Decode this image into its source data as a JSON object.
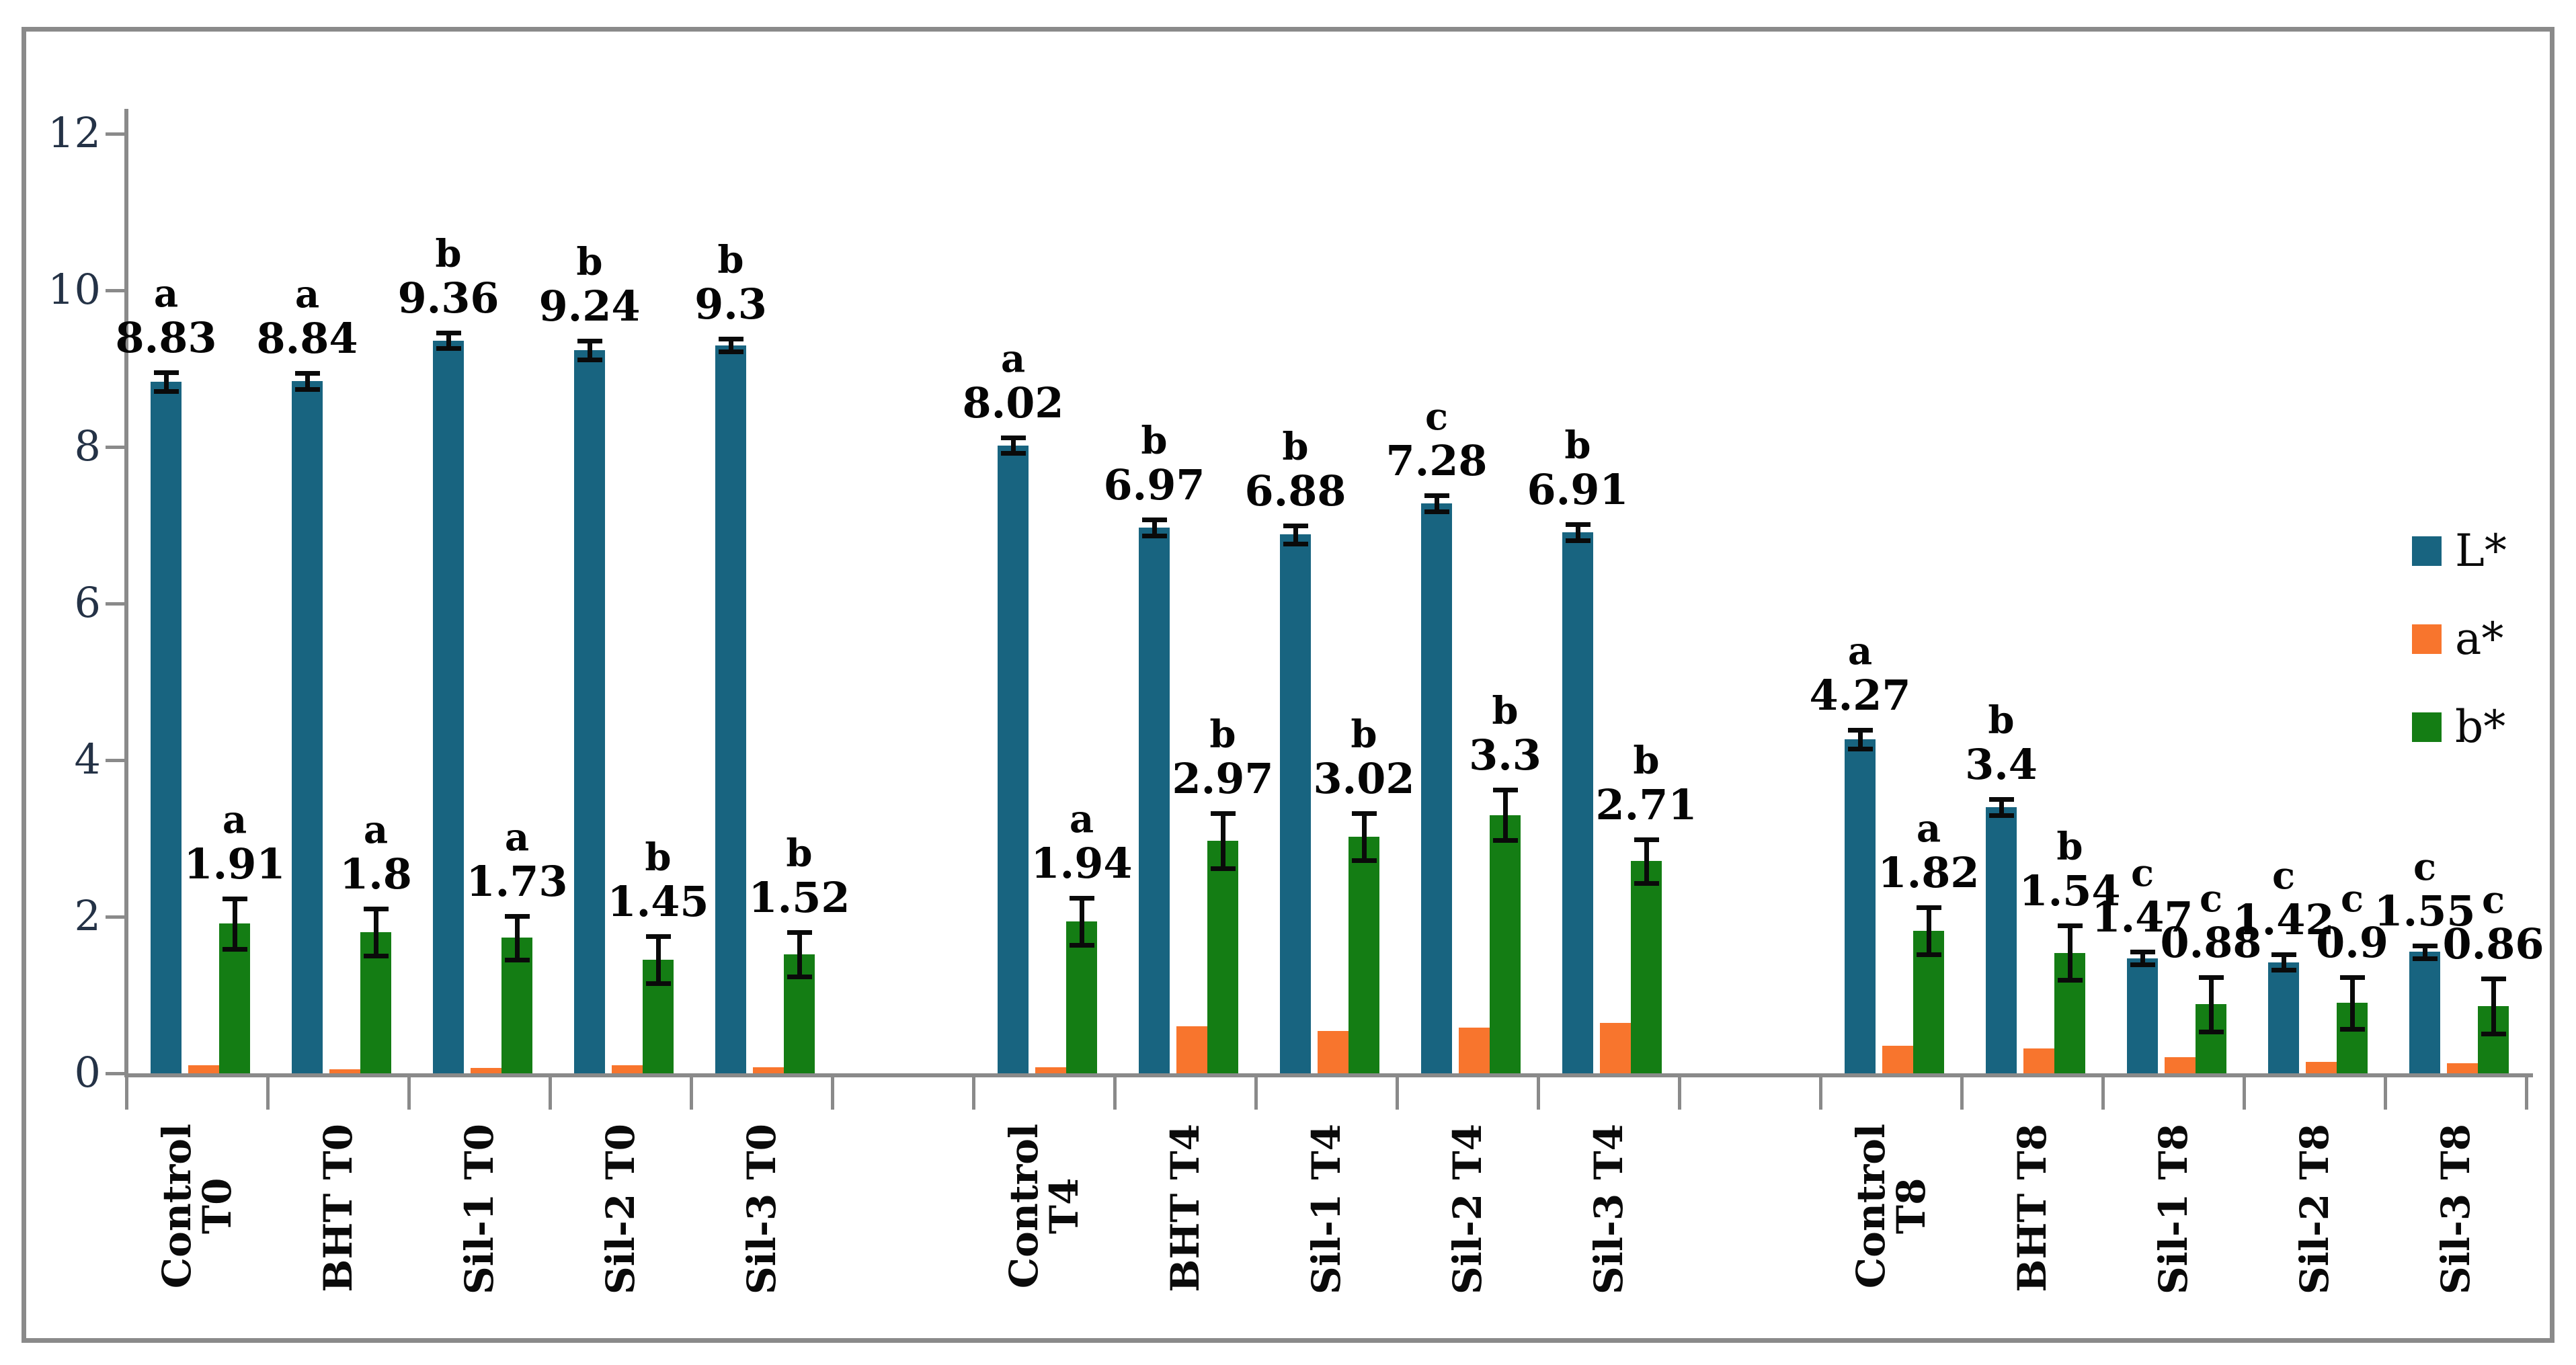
{
  "figure": {
    "background": "#FFFFFF",
    "border_color": "#8A8A8A",
    "axis_color": "#8A8A8A",
    "tick_label_color": "#243246",
    "label_text_color": "#050505"
  },
  "chart_data": {
    "type": "bar",
    "title": "",
    "xlabel": "",
    "ylabel": "",
    "ylim": [
      0,
      12
    ],
    "yticks": [
      0,
      2,
      4,
      6,
      8,
      10,
      12
    ],
    "grid": false,
    "legend": {
      "position": "right-inside",
      "items": [
        {
          "name": "L*",
          "color": "#186480"
        },
        {
          "name": "a*",
          "color": "#F8752D"
        },
        {
          "name": "b*",
          "color": "#147D14"
        }
      ]
    },
    "series_order": [
      "L*",
      "a*",
      "b*"
    ],
    "groups": [
      {
        "name": "T0",
        "clusters": [
          {
            "label_lines": [
              "Control",
              "T0"
            ],
            "bars": [
              {
                "series": "L*",
                "value": 8.83,
                "display": "8.83",
                "letter": "a",
                "err": 0.12
              },
              {
                "series": "a*",
                "value": 0.1,
                "display": "",
                "letter": "",
                "err": 0
              },
              {
                "series": "b*",
                "value": 1.91,
                "display": "1.91",
                "letter": "a",
                "err": 0.32
              }
            ]
          },
          {
            "label_lines": [
              "BHT T0"
            ],
            "bars": [
              {
                "series": "L*",
                "value": 8.84,
                "display": "8.84",
                "letter": "a",
                "err": 0.1
              },
              {
                "series": "a*",
                "value": 0.05,
                "display": "",
                "letter": "",
                "err": 0
              },
              {
                "series": "b*",
                "value": 1.8,
                "display": "1.8",
                "letter": "a",
                "err": 0.3
              }
            ]
          },
          {
            "label_lines": [
              "Sil-1 T0"
            ],
            "bars": [
              {
                "series": "L*",
                "value": 9.36,
                "display": "9.36",
                "letter": "b",
                "err": 0.1
              },
              {
                "series": "a*",
                "value": 0.07,
                "display": "",
                "letter": "",
                "err": 0
              },
              {
                "series": "b*",
                "value": 1.73,
                "display": "1.73",
                "letter": "a",
                "err": 0.28
              }
            ]
          },
          {
            "label_lines": [
              "Sil-2 T0"
            ],
            "bars": [
              {
                "series": "L*",
                "value": 9.24,
                "display": "9.24",
                "letter": "b",
                "err": 0.12
              },
              {
                "series": "a*",
                "value": 0.1,
                "display": "",
                "letter": "",
                "err": 0
              },
              {
                "series": "b*",
                "value": 1.45,
                "display": "1.45",
                "letter": "b",
                "err": 0.3
              }
            ]
          },
          {
            "label_lines": [
              "Sil-3 T0"
            ],
            "bars": [
              {
                "series": "L*",
                "value": 9.3,
                "display": "9.3",
                "letter": "b",
                "err": 0.08
              },
              {
                "series": "a*",
                "value": 0.08,
                "display": "",
                "letter": "",
                "err": 0
              },
              {
                "series": "b*",
                "value": 1.52,
                "display": "1.52",
                "letter": "b",
                "err": 0.28
              }
            ]
          }
        ]
      },
      {
        "name": "T4",
        "clusters": [
          {
            "label_lines": [
              "Control",
              "T4"
            ],
            "bars": [
              {
                "series": "L*",
                "value": 8.02,
                "display": "8.02",
                "letter": "a",
                "err": 0.1
              },
              {
                "series": "a*",
                "value": 0.08,
                "display": "",
                "letter": "",
                "err": 0
              },
              {
                "series": "b*",
                "value": 1.94,
                "display": "1.94",
                "letter": "a",
                "err": 0.3
              }
            ]
          },
          {
            "label_lines": [
              "BHT T4"
            ],
            "bars": [
              {
                "series": "L*",
                "value": 6.97,
                "display": "6.97",
                "letter": "b",
                "err": 0.1
              },
              {
                "series": "a*",
                "value": 0.6,
                "display": "",
                "letter": "",
                "err": 0
              },
              {
                "series": "b*",
                "value": 2.97,
                "display": "2.97",
                "letter": "b",
                "err": 0.35
              }
            ]
          },
          {
            "label_lines": [
              "Sil-1 T4"
            ],
            "bars": [
              {
                "series": "L*",
                "value": 6.88,
                "display": "6.88",
                "letter": "b",
                "err": 0.12
              },
              {
                "series": "a*",
                "value": 0.54,
                "display": "",
                "letter": "",
                "err": 0
              },
              {
                "series": "b*",
                "value": 3.02,
                "display": "3.02",
                "letter": "b",
                "err": 0.3
              }
            ]
          },
          {
            "label_lines": [
              "Sil-2 T4"
            ],
            "bars": [
              {
                "series": "L*",
                "value": 7.28,
                "display": "7.28",
                "letter": "c",
                "err": 0.1
              },
              {
                "series": "a*",
                "value": 0.58,
                "display": "",
                "letter": "",
                "err": 0
              },
              {
                "series": "b*",
                "value": 3.3,
                "display": "3.3",
                "letter": "b",
                "err": 0.32
              }
            ]
          },
          {
            "label_lines": [
              "Sil-3 T4"
            ],
            "bars": [
              {
                "series": "L*",
                "value": 6.91,
                "display": "6.91",
                "letter": "b",
                "err": 0.1
              },
              {
                "series": "a*",
                "value": 0.64,
                "display": "",
                "letter": "",
                "err": 0
              },
              {
                "series": "b*",
                "value": 2.71,
                "display": "2.71",
                "letter": "b",
                "err": 0.28
              }
            ]
          }
        ]
      },
      {
        "name": "T8",
        "clusters": [
          {
            "label_lines": [
              "Control",
              "T8"
            ],
            "bars": [
              {
                "series": "L*",
                "value": 4.27,
                "display": "4.27",
                "letter": "a",
                "err": 0.12
              },
              {
                "series": "a*",
                "value": 0.35,
                "display": "",
                "letter": "",
                "err": 0
              },
              {
                "series": "b*",
                "value": 1.82,
                "display": "1.82",
                "letter": "a",
                "err": 0.3
              }
            ]
          },
          {
            "label_lines": [
              "BHT T8"
            ],
            "bars": [
              {
                "series": "L*",
                "value": 3.4,
                "display": "3.4",
                "letter": "b",
                "err": 0.1
              },
              {
                "series": "a*",
                "value": 0.32,
                "display": "",
                "letter": "",
                "err": 0
              },
              {
                "series": "b*",
                "value": 1.54,
                "display": "1.54",
                "letter": "b",
                "err": 0.35
              }
            ]
          },
          {
            "label_lines": [
              "Sil-1 T8"
            ],
            "bars": [
              {
                "series": "L*",
                "value": 1.47,
                "display": "1.47",
                "letter": "c",
                "err": 0.08
              },
              {
                "series": "a*",
                "value": 0.21,
                "display": "",
                "letter": "",
                "err": 0
              },
              {
                "series": "b*",
                "value": 0.88,
                "display": "0.88",
                "letter": "c",
                "err": 0.35
              }
            ]
          },
          {
            "label_lines": [
              "Sil-2 T8"
            ],
            "bars": [
              {
                "series": "L*",
                "value": 1.42,
                "display": "1.42",
                "letter": "c",
                "err": 0.1
              },
              {
                "series": "a*",
                "value": 0.15,
                "display": "",
                "letter": "",
                "err": 0
              },
              {
                "series": "b*",
                "value": 0.9,
                "display": "0.9",
                "letter": "c",
                "err": 0.33
              }
            ]
          },
          {
            "label_lines": [
              "Sil-3 T8"
            ],
            "bars": [
              {
                "series": "L*",
                "value": 1.55,
                "display": "1.55",
                "letter": "c",
                "err": 0.08
              },
              {
                "series": "a*",
                "value": 0.13,
                "display": "",
                "letter": "",
                "err": 0
              },
              {
                "series": "b*",
                "value": 0.86,
                "display": "0.86",
                "letter": "c",
                "err": 0.35
              }
            ]
          }
        ]
      }
    ]
  }
}
